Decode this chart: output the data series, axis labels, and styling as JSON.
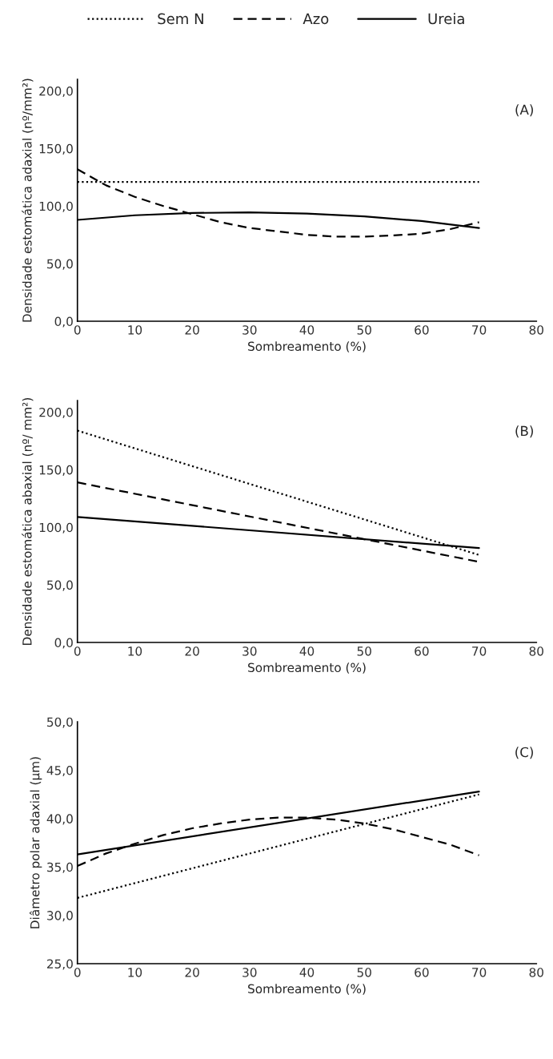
{
  "chart_data": [
    {
      "type": "line",
      "ylabel": "Densidade estomática adaxial (nº/mm²)",
      "xlabel": "Sombreamento (%)",
      "annotations": [
        "(A)"
      ],
      "legend": "top",
      "grid": false,
      "xlim": [
        0,
        80
      ],
      "xticks": [
        0,
        10,
        20,
        30,
        40,
        50,
        60,
        70,
        80
      ],
      "ylim": [
        0,
        210
      ],
      "yticks": [
        {
          "value": 0,
          "label": "0,0"
        },
        {
          "value": 50,
          "label": "50,0"
        },
        {
          "value": 100,
          "label": "100,0"
        },
        {
          "value": 150,
          "label": "150,0"
        },
        {
          "value": 200,
          "label": "200,0"
        }
      ],
      "series": [
        {
          "name": "Sem N",
          "color": "#000000",
          "line_style": "dotted",
          "x": [
            0,
            70
          ],
          "values": [
            121,
            121
          ]
        },
        {
          "name": "Azo",
          "color": "#000000",
          "line_style": "dashed",
          "x": [
            0,
            5,
            10,
            15,
            20,
            25,
            30,
            35,
            40,
            45,
            50,
            55,
            60,
            65,
            70
          ],
          "values": [
            132,
            118,
            108,
            100,
            93,
            86,
            81,
            78,
            75,
            73.5,
            73.5,
            74.5,
            76,
            80,
            86
          ]
        },
        {
          "name": "Ureia",
          "color": "#000000",
          "line_style": "solid",
          "x": [
            0,
            10,
            20,
            30,
            40,
            50,
            60,
            70
          ],
          "values": [
            88,
            92,
            94,
            94.5,
            93.5,
            91,
            87,
            81
          ]
        }
      ]
    },
    {
      "type": "line",
      "ylabel": "Densidade estomática abaxial (nº/ mm²)",
      "xlabel": "Sombreamento (%)",
      "annotations": [
        "(B)"
      ],
      "grid": false,
      "xlim": [
        0,
        80
      ],
      "xticks": [
        0,
        10,
        20,
        30,
        40,
        50,
        60,
        70,
        80
      ],
      "ylim": [
        0,
        210
      ],
      "yticks": [
        {
          "value": 0,
          "label": "0,0"
        },
        {
          "value": 50,
          "label": "50,0"
        },
        {
          "value": 100,
          "label": "100,0"
        },
        {
          "value": 150,
          "label": "150,0"
        },
        {
          "value": 200,
          "label": "200,0"
        }
      ],
      "series": [
        {
          "color": "#000000",
          "line_style": "dotted",
          "x": [
            0,
            70
          ],
          "values": [
            184,
            76
          ]
        },
        {
          "color": "#000000",
          "line_style": "dashed",
          "x": [
            0,
            70
          ],
          "values": [
            139,
            70
          ]
        },
        {
          "color": "#000000",
          "line_style": "solid",
          "x": [
            0,
            70
          ],
          "values": [
            109,
            82
          ]
        }
      ]
    },
    {
      "type": "line",
      "ylabel": "Diâmetro polar adaxial (µm)",
      "xlabel": "Sombreamento (%)",
      "annotations": [
        "(C)"
      ],
      "grid": false,
      "xlim": [
        0,
        80
      ],
      "xticks": [
        0,
        10,
        20,
        30,
        40,
        50,
        60,
        70,
        80
      ],
      "ylim": [
        25,
        50
      ],
      "yticks": [
        {
          "value": 25,
          "label": "25,0"
        },
        {
          "value": 30,
          "label": "30,0"
        },
        {
          "value": 35,
          "label": "35,0"
        },
        {
          "value": 40,
          "label": "40,0"
        },
        {
          "value": 45,
          "label": "45,0"
        },
        {
          "value": 50,
          "label": "50,0"
        }
      ],
      "series": [
        {
          "color": "#000000",
          "line_style": "dotted",
          "x": [
            0,
            70
          ],
          "values": [
            31.8,
            42.5
          ]
        },
        {
          "color": "#000000",
          "line_style": "dashed",
          "x": [
            0,
            5,
            10,
            15,
            20,
            25,
            30,
            35,
            40,
            45,
            50,
            55,
            60,
            65,
            70
          ],
          "values": [
            35.1,
            36.4,
            37.4,
            38.3,
            39.0,
            39.5,
            39.9,
            40.1,
            40.1,
            39.9,
            39.5,
            38.9,
            38.1,
            37.3,
            36.2
          ]
        },
        {
          "color": "#000000",
          "line_style": "solid",
          "x": [
            0,
            70
          ],
          "values": [
            36.3,
            42.8
          ]
        }
      ]
    }
  ]
}
